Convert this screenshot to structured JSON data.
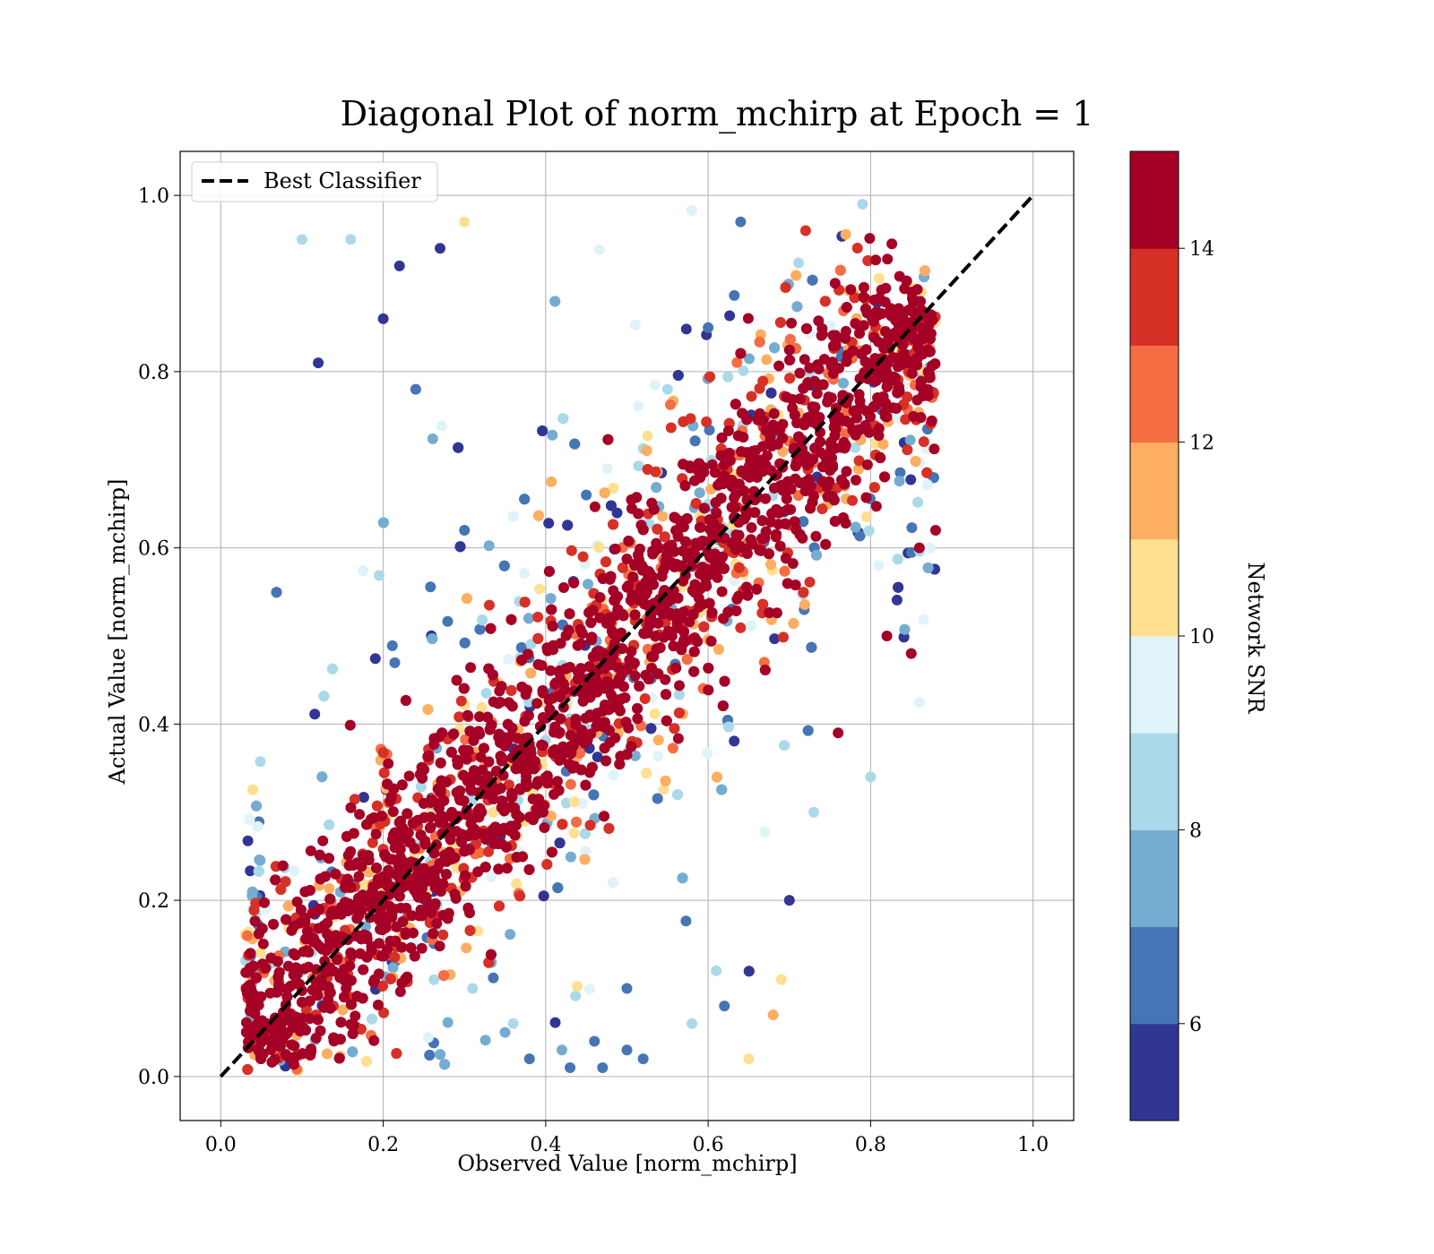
{
  "chart_data": {
    "type": "scatter",
    "title": "Diagonal Plot of norm_mchirp at Epoch = 1",
    "xlabel": "Observed Value [norm_mchirp]",
    "ylabel": "Actual Value [norm_mchirp]",
    "xlim": [
      -0.05,
      1.05
    ],
    "ylim": [
      -0.05,
      1.05
    ],
    "x_ticks": [
      "0.0",
      "0.2",
      "0.4",
      "0.6",
      "0.8",
      "1.0"
    ],
    "y_ticks": [
      "0.0",
      "0.2",
      "0.4",
      "0.6",
      "0.8",
      "1.0"
    ],
    "grid": true,
    "legend": {
      "position": "top-left",
      "entries": [
        "Best Classifier"
      ]
    },
    "reference_line": {
      "name": "Best Classifier",
      "x": [
        0,
        1
      ],
      "y": [
        0,
        1
      ],
      "style": "dashed",
      "color": "#000000"
    },
    "colorbar": {
      "label": "Network SNR",
      "range": [
        5,
        15
      ],
      "ticks": [
        "6",
        "8",
        "10",
        "12",
        "14"
      ],
      "tick_values": [
        6,
        8,
        10,
        12,
        14
      ],
      "colors": [
        "#313695",
        "#4575b4",
        "#74add1",
        "#abd9e9",
        "#e0f3f8",
        "#fee090",
        "#fdae61",
        "#f46d43",
        "#d73027",
        "#a50026"
      ]
    },
    "points": {
      "x": [
        0.1,
        0.12,
        0.16,
        0.2,
        0.22,
        0.24,
        0.27,
        0.3,
        0.31,
        0.35,
        0.36,
        0.38,
        0.42,
        0.46,
        0.5,
        0.52,
        0.58,
        0.62,
        0.65,
        0.68,
        0.7,
        0.73,
        0.76,
        0.8,
        0.82,
        0.85,
        0.86,
        0.88,
        0.3,
        0.45,
        0.55,
        0.6,
        0.72,
        0.64,
        0.79,
        0.69,
        0.47,
        0.43,
        0.5,
        0.61
      ],
      "y": [
        0.95,
        0.81,
        0.95,
        0.86,
        0.92,
        0.78,
        0.94,
        0.97,
        0.1,
        0.05,
        0.06,
        0.02,
        0.03,
        0.04,
        0.03,
        0.02,
        0.06,
        0.08,
        0.02,
        0.07,
        0.2,
        0.3,
        0.39,
        0.34,
        0.5,
        0.48,
        0.6,
        0.62,
        0.62,
        0.66,
        0.78,
        0.85,
        0.96,
        0.97,
        0.99,
        0.11,
        0.01,
        0.01,
        0.1,
        0.12
      ],
      "snr": [
        8.5,
        5.5,
        8.5,
        5.5,
        5.5,
        6.2,
        5.5,
        10,
        8.5,
        7.5,
        8.5,
        6,
        7,
        6.5,
        6.5,
        6.5,
        8,
        6.2,
        10,
        11,
        5.5,
        8,
        14.5,
        8,
        14.5,
        14.5,
        14.5,
        14.5,
        6,
        6,
        8,
        6.2,
        13,
        6,
        8,
        10,
        6.5,
        6,
        6.2,
        8.5
      ]
    }
  }
}
